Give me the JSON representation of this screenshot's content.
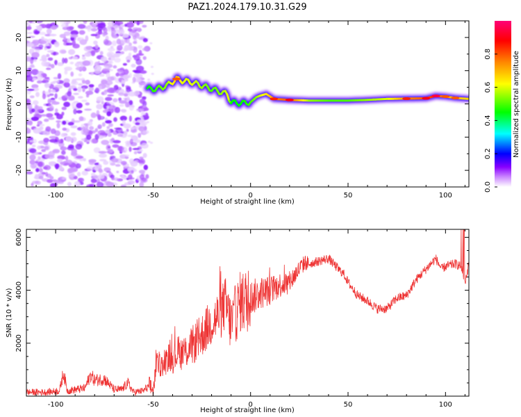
{
  "title": "PAZ1.2024.179.10.31.G29",
  "chart_data": [
    {
      "type": "heatmap",
      "xlabel": "Height of straight line (km)",
      "ylabel": "Frequency (Hz)",
      "xlim": [
        -115,
        112
      ],
      "ylim": [
        -25,
        25
      ],
      "xticks": [
        -100,
        -50,
        0,
        50,
        100
      ],
      "yticks": [
        -20,
        -10,
        0,
        10,
        20
      ],
      "colorbar": {
        "label": "Normalized spectral amplitude",
        "range": [
          0,
          1
        ],
        "ticks": [
          0.0,
          0.2,
          0.4,
          0.6,
          0.8
        ],
        "colormap": [
          "#ffffff",
          "#8800ff",
          "#0000ff",
          "#00ffff",
          "#00ff00",
          "#ffff00",
          "#ff8800",
          "#ff0000",
          "#ff0077"
        ]
      },
      "noise_region_x": [
        -115,
        -53
      ],
      "peak_track": {
        "x": [
          -53,
          -48,
          -43,
          -38,
          -35,
          -30,
          -25,
          -20,
          -15,
          -12,
          -10,
          -5,
          0,
          3,
          5,
          8,
          12,
          20,
          30,
          40,
          50,
          60,
          70,
          80,
          90,
          95,
          100,
          105,
          112
        ],
        "freq": [
          4.5,
          4.5,
          5.5,
          7.5,
          7,
          6.5,
          5.5,
          4.5,
          3.5,
          3,
          0.5,
          0.2,
          0.5,
          2,
          2.5,
          3,
          1.5,
          1.2,
          1.0,
          1.0,
          1.0,
          1.2,
          1.5,
          1.6,
          1.7,
          2.4,
          2.2,
          1.8,
          1.5
        ],
        "amplitude": [
          0.45,
          0.5,
          0.55,
          0.7,
          0.6,
          0.6,
          0.55,
          0.5,
          0.55,
          0.6,
          0.45,
          0.45,
          0.5,
          0.55,
          0.6,
          0.65,
          0.75,
          0.8,
          0.55,
          0.5,
          0.5,
          0.55,
          0.6,
          0.75,
          0.8,
          0.85,
          0.7,
          0.7,
          0.65
        ]
      }
    },
    {
      "type": "line",
      "xlabel": "Height of straight line (km)",
      "ylabel": "SNR (10 * v/v)",
      "xlim": [
        -115,
        112
      ],
      "ylim": [
        0,
        6300
      ],
      "xticks": [
        -100,
        -50,
        0,
        50,
        100
      ],
      "yticks": [
        2000,
        4000,
        6000
      ],
      "color": "#ee3333",
      "series": [
        {
          "x": [
            -115,
            -105,
            -98,
            -96,
            -94,
            -85,
            -82,
            -80,
            -75,
            -70,
            -66,
            -63,
            -60,
            -55,
            -52,
            -50,
            -48,
            -45,
            -42,
            -40,
            -37,
            -35,
            -30,
            -25,
            -20,
            -18,
            -15,
            -13,
            -10,
            -5,
            -2,
            0,
            5,
            10,
            15,
            20,
            25,
            28,
            30,
            35,
            40,
            45,
            48,
            50,
            55,
            60,
            65,
            70,
            75,
            80,
            85,
            90,
            95,
            98,
            100,
            105,
            108,
            110,
            112
          ],
          "y": [
            150,
            150,
            200,
            900,
            200,
            300,
            800,
            600,
            650,
            250,
            250,
            500,
            150,
            200,
            400,
            200,
            1300,
            1100,
            1500,
            1400,
            1700,
            1600,
            1900,
            2300,
            2800,
            2900,
            3200,
            3500,
            2700,
            3600,
            3600,
            3700,
            3900,
            4000,
            4200,
            4300,
            4800,
            5050,
            5000,
            5100,
            5200,
            4800,
            4600,
            4300,
            3800,
            3600,
            3300,
            3300,
            3700,
            3800,
            4400,
            4800,
            5200,
            4800,
            4900,
            5000,
            4900,
            4300,
            5000
          ]
        }
      ]
    }
  ]
}
